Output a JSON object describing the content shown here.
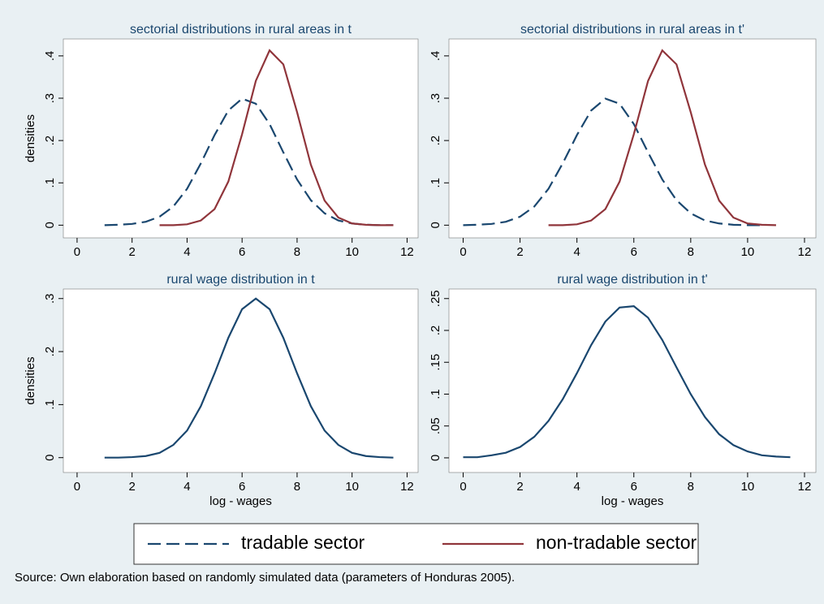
{
  "chart_data": [
    {
      "type": "line",
      "title": "sectorial distributions in rural areas in t",
      "y_label": "densities",
      "x": [
        1,
        1.5,
        2,
        2.5,
        3,
        3.5,
        4,
        4.5,
        5,
        5.5,
        6,
        6.5,
        7,
        7.5,
        8,
        8.5,
        9,
        9.5,
        10,
        10.5,
        11,
        11.5
      ],
      "series": [
        {
          "name": "tradable sector",
          "color": "#1a476f",
          "dashed": true,
          "values": [
            0,
            0.001,
            0.003,
            0.008,
            0.02,
            0.044,
            0.086,
            0.146,
            0.213,
            0.271,
            0.299,
            0.287,
            0.239,
            0.172,
            0.108,
            0.059,
            0.028,
            0.011,
            0.004,
            0.001,
            0,
            0
          ]
        },
        {
          "name": "non-tradable sector",
          "color": "#90353b",
          "dashed": false,
          "values": [
            null,
            null,
            null,
            null,
            0,
            0,
            0.002,
            0.011,
            0.038,
            0.103,
            0.215,
            0.341,
            0.413,
            0.38,
            0.267,
            0.143,
            0.058,
            0.018,
            0.004,
            0.001,
            0,
            0
          ]
        }
      ],
      "xlim": [
        -0.5,
        12.4
      ],
      "xticks": [
        0,
        2,
        4,
        6,
        8,
        10,
        12
      ],
      "ylim": [
        -0.03,
        0.44
      ],
      "yticks": [
        0,
        {
          "value": 0.1,
          "label": ".1"
        },
        {
          "value": 0.2,
          "label": ".2"
        },
        {
          "value": 0.3,
          "label": ".3"
        },
        {
          "value": 0.4,
          "label": ".4"
        }
      ]
    },
    {
      "type": "line",
      "title": "sectorial distributions in rural areas in t'",
      "x": [
        0,
        0.5,
        1,
        1.5,
        2,
        2.5,
        3,
        3.5,
        4,
        4.5,
        5,
        5.5,
        6,
        6.5,
        7,
        7.5,
        8,
        8.5,
        9,
        9.5,
        10,
        10.5,
        11,
        11.5
      ],
      "series": [
        {
          "name": "tradable sector",
          "color": "#1a476f",
          "dashed": true,
          "values": [
            0,
            0.001,
            0.003,
            0.008,
            0.02,
            0.044,
            0.086,
            0.146,
            0.213,
            0.271,
            0.299,
            0.287,
            0.239,
            0.172,
            0.108,
            0.059,
            0.028,
            0.011,
            0.004,
            0.001,
            0,
            0,
            null,
            null
          ]
        },
        {
          "name": "non-tradable sector",
          "color": "#90353b",
          "dashed": false,
          "values": [
            null,
            null,
            null,
            null,
            null,
            null,
            0,
            0,
            0.002,
            0.011,
            0.038,
            0.103,
            0.215,
            0.341,
            0.413,
            0.38,
            0.267,
            0.143,
            0.058,
            0.018,
            0.004,
            0.001,
            0,
            null
          ]
        }
      ],
      "xlim": [
        -0.5,
        12.4
      ],
      "xticks": [
        0,
        2,
        4,
        6,
        8,
        10,
        12
      ],
      "ylim": [
        -0.03,
        0.44
      ],
      "yticks": [
        0,
        {
          "value": 0.1,
          "label": ".1"
        },
        {
          "value": 0.2,
          "label": ".2"
        },
        {
          "value": 0.3,
          "label": ".3"
        },
        {
          "value": 0.4,
          "label": ".4"
        }
      ]
    },
    {
      "type": "line",
      "title": "rural wage distribution in t",
      "y_label": "densities",
      "x_label": "log - wages",
      "x": [
        1,
        1.5,
        2,
        2.5,
        3,
        3.5,
        4,
        4.5,
        5,
        5.5,
        6,
        6.5,
        7,
        7.5,
        8,
        8.5,
        9,
        9.5,
        10,
        10.5,
        11,
        11.5
      ],
      "series": [
        {
          "color": "#1a476f",
          "dashed": false,
          "values": [
            0,
            0,
            0.001,
            0.003,
            0.009,
            0.024,
            0.051,
            0.097,
            0.159,
            0.226,
            0.28,
            0.3,
            0.28,
            0.226,
            0.159,
            0.097,
            0.051,
            0.024,
            0.009,
            0.003,
            0.001,
            0
          ]
        }
      ],
      "xlim": [
        -0.5,
        12.4
      ],
      "xticks": [
        0,
        2,
        4,
        6,
        8,
        10,
        12
      ],
      "ylim": [
        -0.028,
        0.318
      ],
      "yticks": [
        0,
        {
          "value": 0.1,
          "label": ".1"
        },
        {
          "value": 0.2,
          "label": ".2"
        },
        {
          "value": 0.3,
          "label": ".3"
        }
      ]
    },
    {
      "type": "line",
      "title": "rural wage distribution in t'",
      "x_label": "log - wages",
      "x": [
        0,
        0.5,
        1,
        1.5,
        2,
        2.5,
        3,
        3.5,
        4,
        4.5,
        5,
        5.5,
        6,
        6.5,
        7,
        7.5,
        8,
        8.5,
        9,
        9.5,
        10,
        10.5,
        11,
        11.5
      ],
      "series": [
        {
          "color": "#1a476f",
          "dashed": false,
          "values": [
            0.001,
            0.001,
            0.004,
            0.008,
            0.017,
            0.033,
            0.058,
            0.092,
            0.133,
            0.177,
            0.214,
            0.236,
            0.238,
            0.22,
            0.185,
            0.142,
            0.1,
            0.064,
            0.037,
            0.02,
            0.01,
            0.004,
            0.002,
            0.001
          ]
        }
      ],
      "xlim": [
        -0.5,
        12.4
      ],
      "xticks": [
        0,
        2,
        4,
        6,
        8,
        10,
        12
      ],
      "ylim": [
        -0.023,
        0.265
      ],
      "yticks": [
        0,
        {
          "value": 0.05,
          "label": ".05"
        },
        {
          "value": 0.1,
          "label": ".1"
        },
        {
          "value": 0.15,
          "label": ".15"
        },
        {
          "value": 0.2,
          "label": ".2"
        },
        {
          "value": 0.25,
          "label": ".25"
        }
      ]
    }
  ],
  "note": "Source: Own elaboration based on randomly simulated data (parameters of Honduras 2005)."
}
